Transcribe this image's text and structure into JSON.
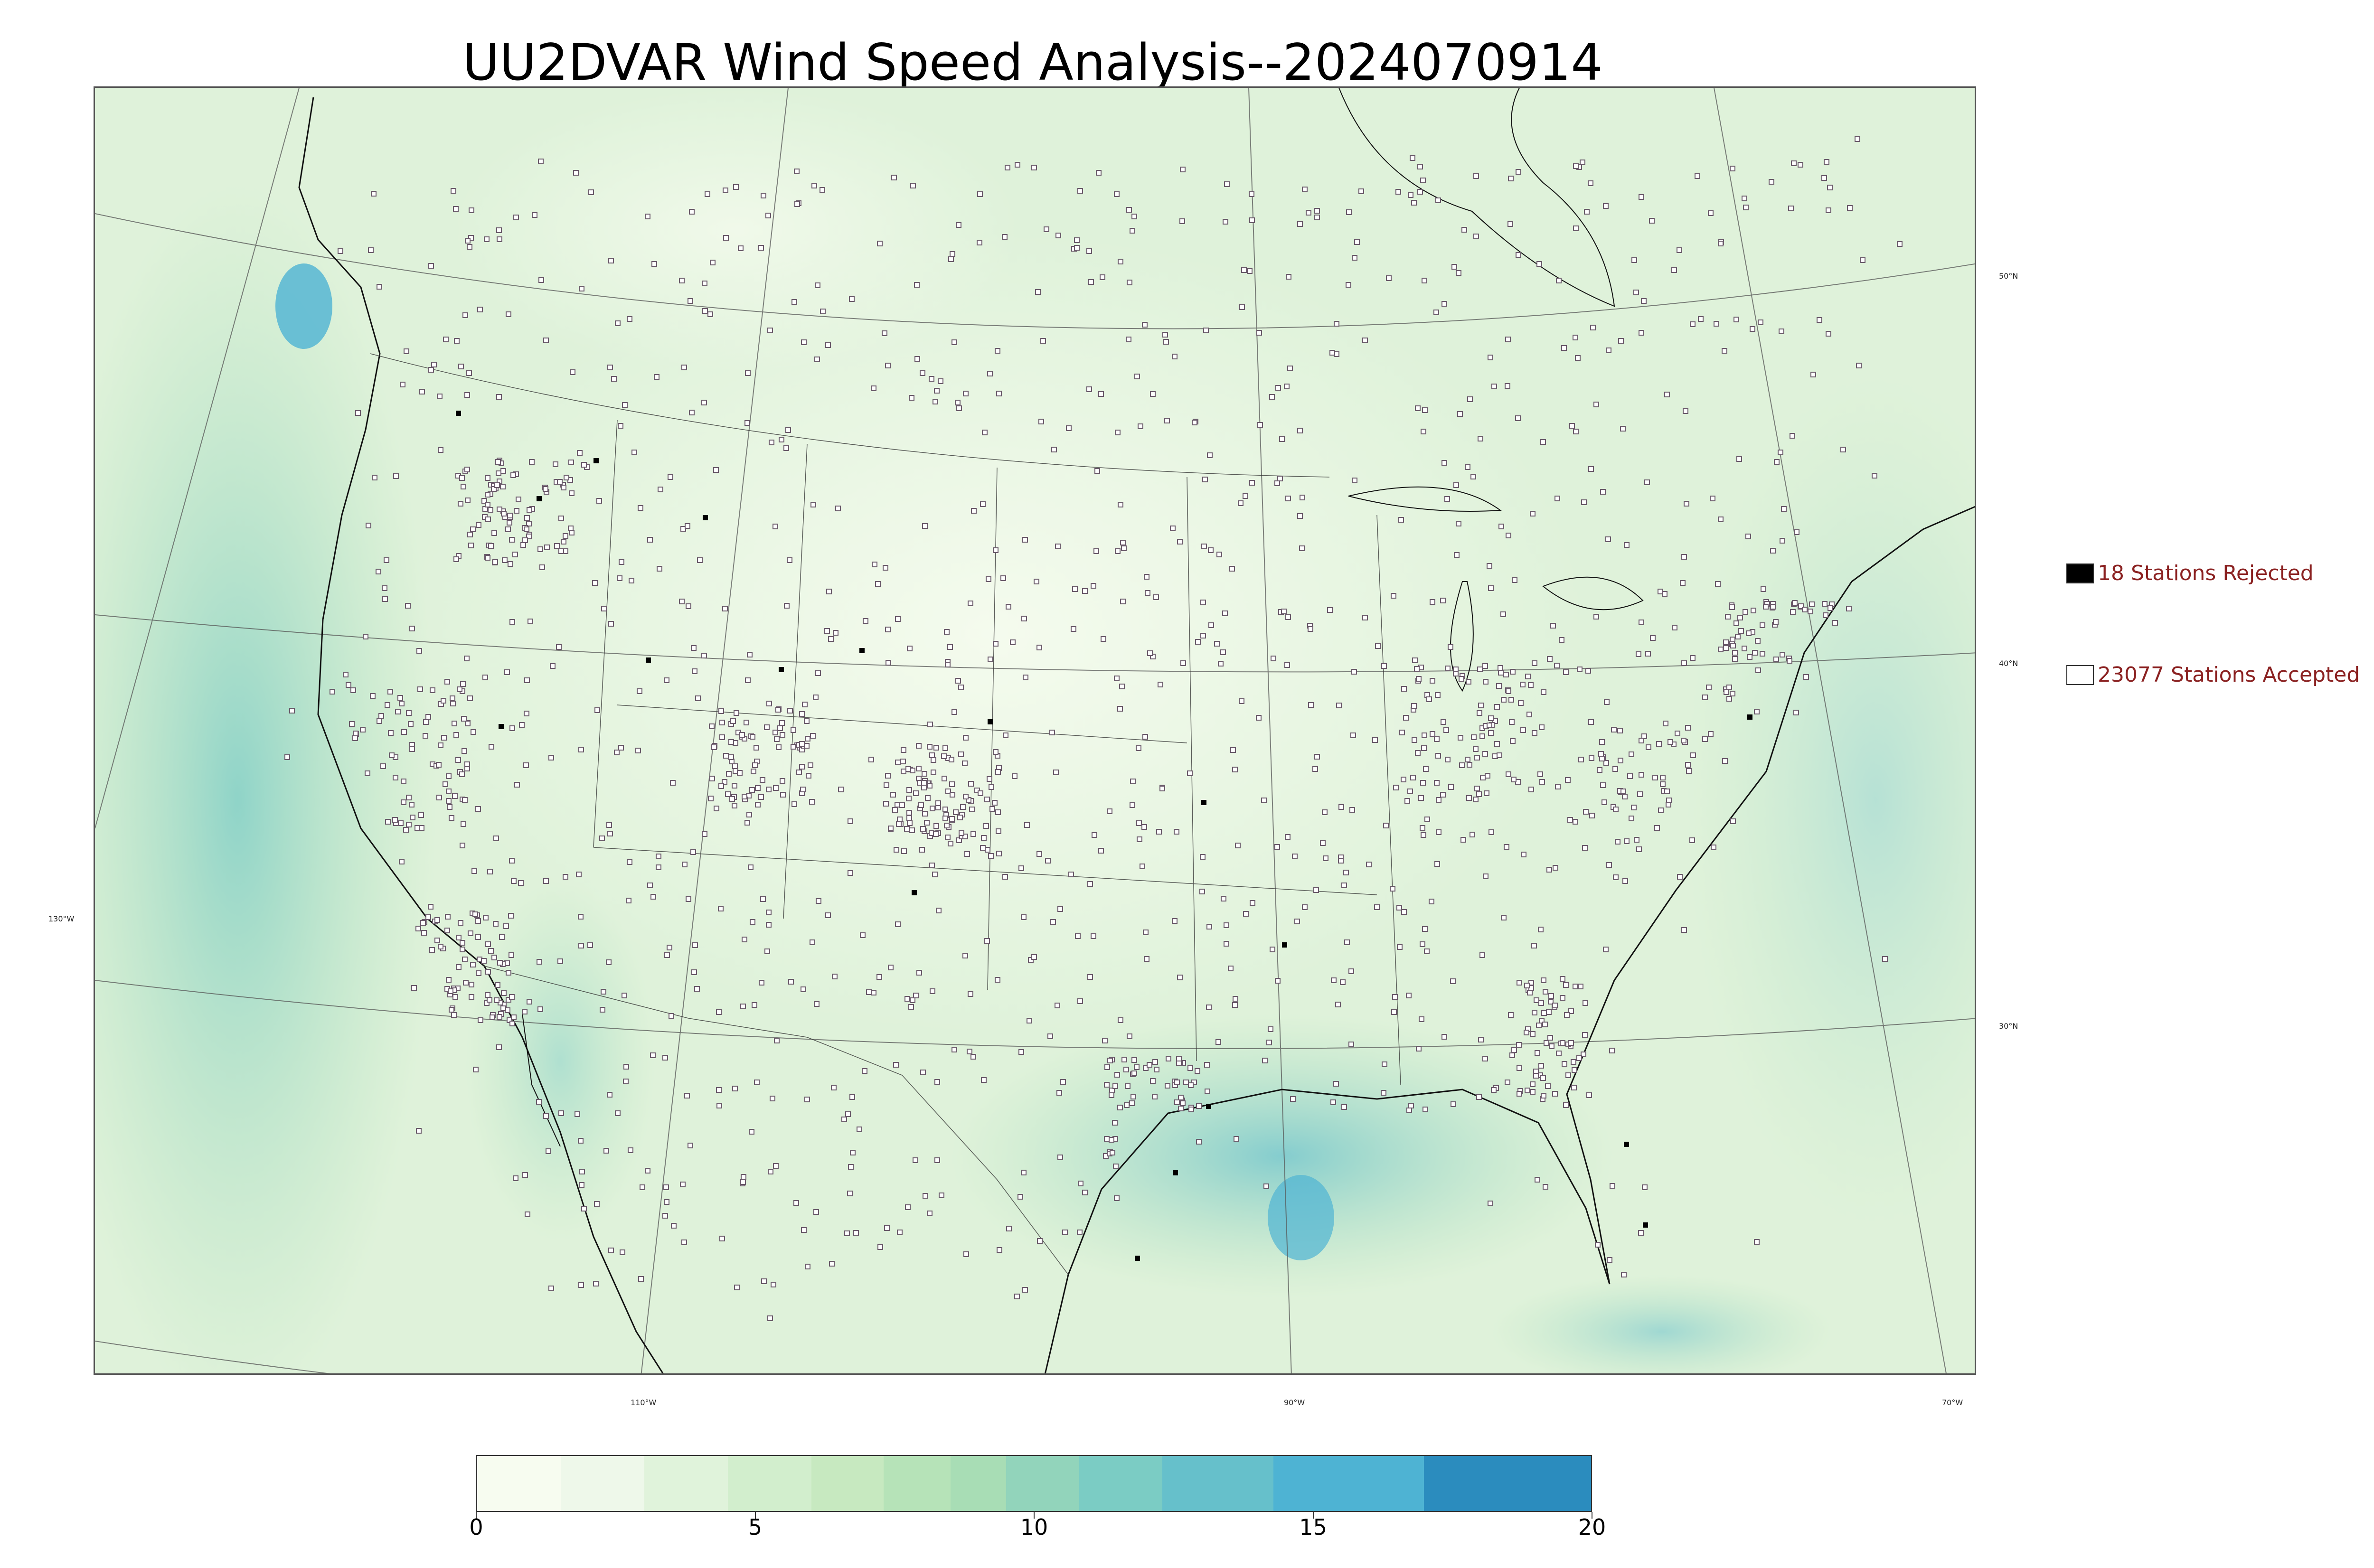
{
  "title": "UU2DVAR Wind Speed Analysis--2024070914",
  "map": {
    "region": "CONUS",
    "lat_labels": [
      "50°N",
      "40°N",
      "30°N"
    ],
    "lon_labels": [
      "130°W",
      "110°W",
      "90°W",
      "70°W"
    ],
    "colors": {
      "land_base": "#e6f4e2",
      "ocean_base": "#d0ecd0",
      "coast": "#111111",
      "grid": "#555555",
      "station_accepted": "#ffffff",
      "station_rejected": "#000000"
    }
  },
  "legend": {
    "rejected": {
      "count_label": "18 Stations Rejected",
      "count": 18,
      "marker": "filled-square"
    },
    "accepted": {
      "count_label": "23077 Stations Accepted",
      "count": 23077,
      "marker": "hollow-square"
    }
  },
  "colorbar": {
    "min": 0,
    "max": 20,
    "tick_values": [
      0,
      5,
      10,
      15,
      20
    ],
    "tick_labels": [
      "0",
      "5",
      "10",
      "15",
      "20"
    ],
    "colors": [
      "#f7fcf0",
      "#eef8ea",
      "#e0f3db",
      "#d2eecd",
      "#c7e9c0",
      "#b6e3b8",
      "#a8ddb5",
      "#92d4bb",
      "#7bccc4",
      "#66c0cb",
      "#4eb3d3",
      "#2b8cbe",
      "#0868ac"
    ],
    "stops": [
      0,
      1.5,
      3,
      4.5,
      6,
      7.3,
      8.5,
      9.5,
      10.8,
      12.3,
      14.3,
      17,
      20
    ]
  }
}
